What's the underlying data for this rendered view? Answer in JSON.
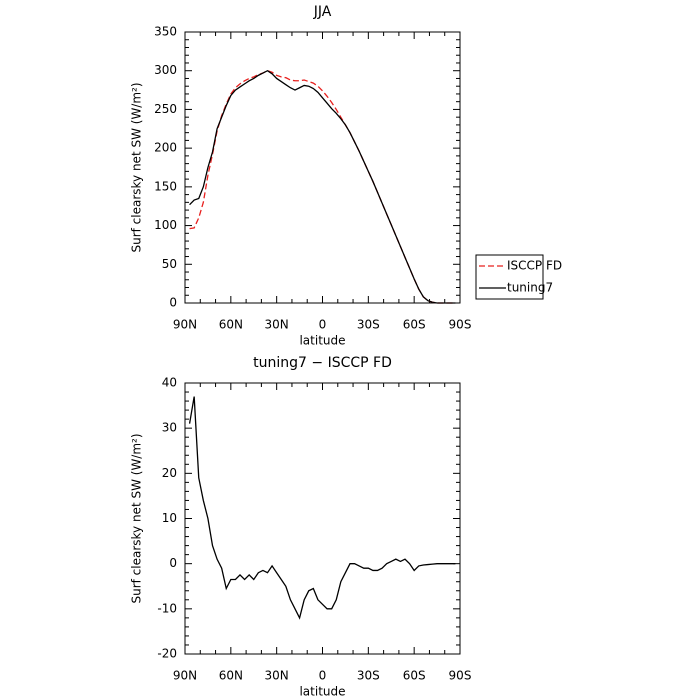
{
  "chart_data": [
    {
      "type": "line",
      "title": "JJA",
      "xlabel": "latitude",
      "ylabel": "Surf clearsky net SW (W/m²)",
      "x": [
        87,
        84,
        81,
        78,
        75,
        72,
        69,
        66,
        63,
        60,
        57,
        54,
        51,
        48,
        45,
        42,
        39,
        36,
        33,
        30,
        27,
        24,
        21,
        18,
        15,
        12,
        9,
        6,
        3,
        0,
        -3,
        -6,
        -9,
        -12,
        -15,
        -18,
        -21,
        -24,
        -27,
        -30,
        -33,
        -36,
        -39,
        -42,
        -45,
        -48,
        -51,
        -54,
        -57,
        -60,
        -63,
        -66,
        -69,
        -72,
        -75,
        -78,
        -81,
        -84,
        -87
      ],
      "series": [
        {
          "name": "ISCCP FD",
          "color": "#e8201e",
          "line_style": "dashed",
          "values": [
            96,
            97,
            110,
            130,
            165,
            192,
            222,
            242,
            257,
            270,
            278,
            283,
            287,
            290,
            292,
            295,
            297,
            300,
            298,
            294,
            292,
            291,
            288,
            287,
            287,
            288,
            286,
            284,
            280,
            274,
            267,
            259,
            250,
            240,
            230,
            220,
            208,
            196,
            183,
            170,
            157,
            143,
            129,
            115,
            101,
            87,
            73,
            59,
            45,
            31,
            18,
            8,
            3,
            1,
            0,
            0,
            0,
            0,
            0
          ]
        },
        {
          "name": "tuning7",
          "color": "#000000",
          "line_style": "solid",
          "values": [
            127,
            133,
            135,
            150,
            175,
            195,
            225,
            240,
            255,
            268,
            275,
            279,
            283,
            287,
            290,
            294,
            297,
            300,
            296,
            290,
            286,
            282,
            278,
            275,
            278,
            281,
            280,
            277,
            272,
            265,
            258,
            251,
            245,
            238,
            230,
            220,
            208,
            196,
            183,
            170,
            157,
            143,
            129,
            115,
            101,
            87,
            73,
            59,
            45,
            31,
            18,
            8,
            3,
            1,
            0,
            0,
            0,
            0,
            0
          ]
        }
      ],
      "xlim": [
        90,
        -90
      ],
      "xticks": [
        {
          "value": 90,
          "label": "90N"
        },
        {
          "value": 60,
          "label": "60N"
        },
        {
          "value": 30,
          "label": "30N"
        },
        0,
        {
          "value": -30,
          "label": "30S"
        },
        {
          "value": -60,
          "label": "60S"
        },
        {
          "value": -90,
          "label": "90S"
        }
      ],
      "ylim": [
        0,
        350
      ],
      "yticks": [
        0,
        50,
        100,
        150,
        200,
        250,
        300,
        350
      ],
      "legend_position": "outside-right"
    },
    {
      "type": "line",
      "title": "tuning7 − ISCCP FD",
      "xlabel": "latitude",
      "ylabel": "Surf clearsky net SW (W/m²)",
      "x": [
        87,
        84,
        81,
        78,
        75,
        72,
        69,
        66,
        63,
        60,
        57,
        54,
        51,
        48,
        45,
        42,
        39,
        36,
        33,
        30,
        27,
        24,
        21,
        18,
        15,
        12,
        9,
        6,
        3,
        0,
        -3,
        -6,
        -9,
        -12,
        -15,
        -18,
        -21,
        -24,
        -27,
        -30,
        -33,
        -36,
        -39,
        -42,
        -45,
        -48,
        -51,
        -54,
        -57,
        -60,
        -63,
        -66,
        -69,
        -72,
        -75,
        -78,
        -81,
        -84,
        -87
      ],
      "series": [
        {
          "color": "#000000",
          "line_style": "solid",
          "values": [
            31,
            37,
            19,
            14,
            10,
            4,
            1,
            -1,
            -5.5,
            -3.5,
            -3.5,
            -2.5,
            -3.5,
            -2.5,
            -3.5,
            -2,
            -1.5,
            -2,
            -0.5,
            -2,
            -3.5,
            -5,
            -8,
            -10,
            -12,
            -8,
            -6,
            -5.5,
            -8,
            -9,
            -10,
            -10,
            -8,
            -4,
            -2,
            0,
            0,
            -0.5,
            -1,
            -1,
            -1.5,
            -1.5,
            -1,
            0,
            0.5,
            1,
            0.5,
            1,
            0,
            -1.5,
            -0.5,
            -0.3,
            -0.2,
            -0.1,
            0,
            0,
            0,
            0,
            0
          ]
        }
      ],
      "xlim": [
        90,
        -90
      ],
      "xticks": [
        {
          "value": 90,
          "label": "90N"
        },
        {
          "value": 60,
          "label": "60N"
        },
        {
          "value": 30,
          "label": "30N"
        },
        0,
        {
          "value": -30,
          "label": "30S"
        },
        {
          "value": -60,
          "label": "60S"
        },
        {
          "value": -90,
          "label": "90S"
        }
      ],
      "ylim": [
        -20,
        40
      ],
      "yticks": [
        -20,
        -10,
        0,
        10,
        20,
        30,
        40
      ]
    }
  ]
}
